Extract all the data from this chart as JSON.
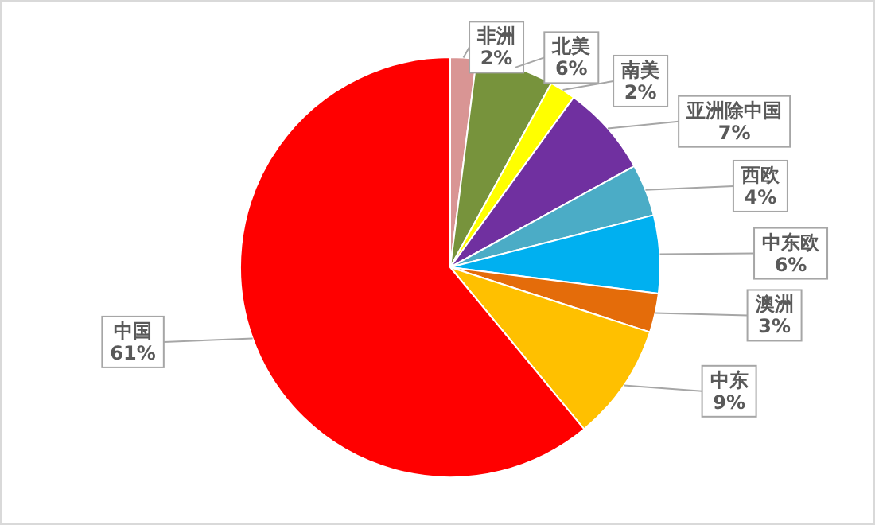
{
  "chart_data": {
    "type": "pie",
    "categories": [
      "非洲",
      "北美",
      "南美",
      "亚洲除中国",
      "西欧",
      "中东欧",
      "澳洲",
      "中东",
      "中国"
    ],
    "values": [
      2,
      6,
      2,
      7,
      4,
      6,
      3,
      9,
      61
    ],
    "colors": [
      "#d99594",
      "#77933c",
      "#ffff00",
      "#7030a0",
      "#4bacc6",
      "#00b0f0",
      "#e46c0a",
      "#ffc000",
      "#ff0000"
    ],
    "value_labels": [
      "2%",
      "6%",
      "2%",
      "7%",
      "4%",
      "6%",
      "3%",
      "9%",
      "61%"
    ]
  }
}
